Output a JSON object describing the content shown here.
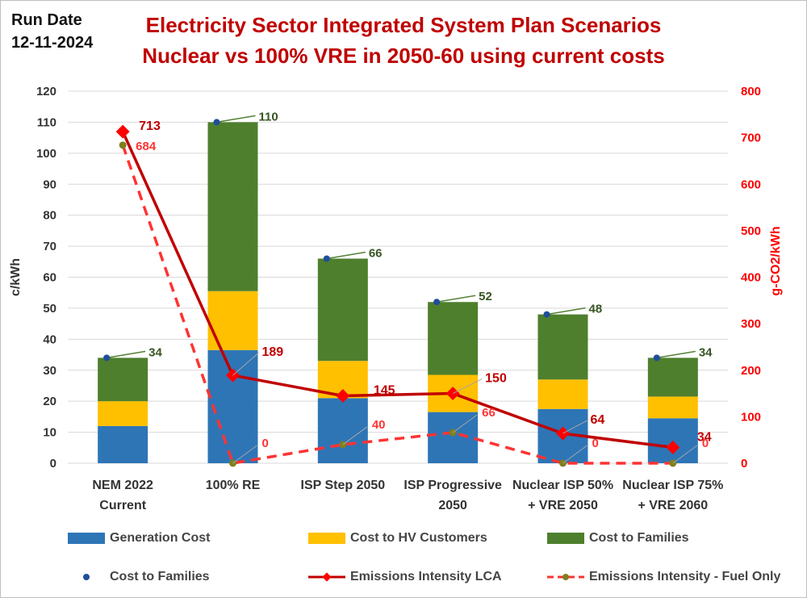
{
  "header": {
    "run_date_label": "Run Date",
    "run_date_value": "12-11-2024",
    "title_line1": "Electricity Sector Integrated System Plan Scenarios",
    "title_line2": "Nuclear vs 100% VRE in 2050-60 using current costs"
  },
  "chart_data": {
    "type": "bar",
    "stacked": true,
    "categories": [
      [
        "NEM 2022",
        "Current"
      ],
      [
        "100% RE"
      ],
      [
        "ISP Step 2050"
      ],
      [
        "ISP Progressive",
        "2050"
      ],
      [
        "Nuclear ISP 50%",
        "+ VRE 2050"
      ],
      [
        "Nuclear ISP 75%",
        "+ VRE 2060"
      ]
    ],
    "ylabel": "c/kWh",
    "ylabel_right": "g-CO2/kWh",
    "ylim": [
      0,
      120
    ],
    "ylim_right": [
      0,
      800
    ],
    "yticks": [
      0,
      10,
      20,
      30,
      40,
      50,
      60,
      70,
      80,
      90,
      100,
      110,
      120
    ],
    "yticks_right": [
      0,
      100,
      200,
      300,
      400,
      500,
      600,
      700,
      800
    ],
    "grid": true,
    "legend_position": "bottom",
    "bar_series": [
      {
        "name": "Generation Cost",
        "color": "#2e75b6",
        "values": [
          12,
          36.5,
          21,
          16.5,
          17.5,
          14.5
        ]
      },
      {
        "name": "Cost to HV Customers",
        "color": "#ffc000",
        "values": [
          8,
          19,
          12,
          12,
          9.5,
          7
        ]
      },
      {
        "name": "Cost to Families",
        "color": "#4e7f2d",
        "values": [
          14,
          54.5,
          33,
          23.5,
          21,
          12.5
        ]
      }
    ],
    "total_series": {
      "name": "Cost to Families",
      "color": "#1f4e9a",
      "values": [
        34,
        110,
        66,
        52,
        48,
        34
      ]
    },
    "total_labels": [
      "34",
      "110",
      "66",
      "52",
      "48",
      "34"
    ],
    "line_series": [
      {
        "name": "Emissions Intensity LCA",
        "color": "#c00000",
        "axis": "right",
        "values": [
          713,
          189,
          145,
          150,
          64,
          34
        ],
        "labels": [
          "713",
          "189",
          "145",
          "150",
          "64",
          "34"
        ]
      },
      {
        "name": "Emissions Intensity - Fuel Only",
        "color": "#ff3333",
        "marker_color": "#7f7f1f",
        "axis": "right",
        "dashed": true,
        "values": [
          684,
          0,
          40,
          66,
          0,
          0
        ],
        "labels": [
          "684",
          "0",
          "40",
          "66",
          "0",
          "0"
        ]
      }
    ],
    "colors": {
      "grid": "#d9d9d9",
      "axis_text": "#333333",
      "right_axis_text": "#ff0000",
      "total_label": "#375623",
      "lca_label": "#c00000",
      "fuel_label": "#ff3333"
    }
  },
  "legend": [
    {
      "label": "Generation Cost",
      "kind": "box",
      "color": "#2e75b6"
    },
    {
      "label": "Cost to HV Customers",
      "kind": "box",
      "color": "#ffc000"
    },
    {
      "label": "Cost to Families",
      "kind": "box",
      "color": "#4e7f2d"
    },
    {
      "label": "Cost to Families",
      "kind": "dot",
      "color": "#1f4e9a"
    },
    {
      "label": "Emissions Intensity LCA",
      "kind": "line-diamond",
      "color": "#c00000"
    },
    {
      "label": "Emissions Intensity - Fuel Only",
      "kind": "dash-dot",
      "color": "#ff3333"
    }
  ]
}
